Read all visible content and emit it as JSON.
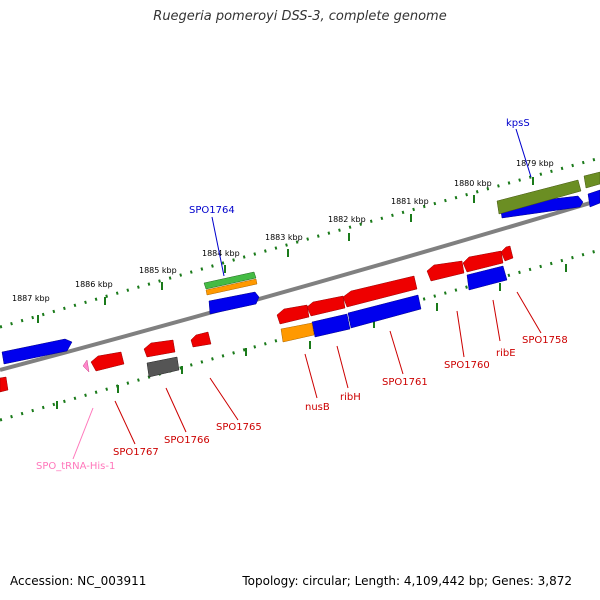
{
  "title": "Ruegeria pomeroyi DSS-3, complete genome",
  "footer": {
    "accession": "Accession: NC_003911",
    "summary": "Topology: circular; Length: 4,109,442 bp; Genes: 3,872"
  },
  "colors": {
    "cds_forward": "#0000ee",
    "cds_reverse": "#ee0000",
    "rna": "#ff88cc",
    "cog_green": "#44bb44",
    "cog_orange": "#ff9900",
    "cog_olive": "#6b8e23",
    "cog_gray": "#555555",
    "backbone": "#808080",
    "ruler": "#1a7a1a",
    "label_blue": "#0000cc",
    "label_red": "#cc0000",
    "label_pink": "#ff77bb"
  },
  "ruler_outer": [
    "1887 kbp",
    "1886 kbp",
    "1885 kbp",
    "1884 kbp",
    "1883 kbp",
    "1882 kbp",
    "1881 kbp",
    "1880 kbp",
    "1879 kbp"
  ],
  "gene_labels": {
    "kpsS": "kpsS",
    "spo1764": "SPO1764",
    "spo1758": "SPO1758",
    "ribE": "ribE",
    "spo1760": "SPO1760",
    "spo1761": "SPO1761",
    "ribH": "ribH",
    "nusB": "nusB",
    "spo1765": "SPO1765",
    "spo1766": "SPO1766",
    "spo1767": "SPO1767",
    "trna": "SPO_tRNA-His-1"
  }
}
